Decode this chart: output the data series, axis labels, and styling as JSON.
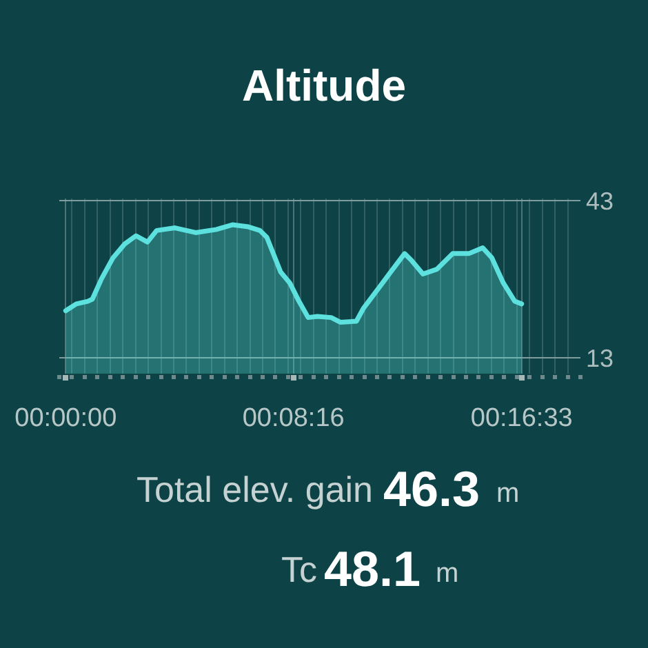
{
  "chart_data": {
    "type": "area",
    "title": "Altitude",
    "x": [
      0,
      23,
      48,
      58,
      78,
      103,
      128,
      153,
      178,
      198,
      238,
      283,
      328,
      363,
      398,
      423,
      438,
      468,
      488,
      508,
      528,
      548,
      578,
      598,
      633,
      648,
      678,
      708,
      738,
      753,
      778,
      808,
      843,
      878,
      908,
      928,
      953,
      978,
      993
    ],
    "series": [
      {
        "color": "#5ce1de",
        "values": [
          22.0,
          23.3,
          23.8,
          24.2,
          28.1,
          32.1,
          34.7,
          36.3,
          35.1,
          37.3,
          37.8,
          36.9,
          37.5,
          38.4,
          38.0,
          37.3,
          36.0,
          29.4,
          27.3,
          23.8,
          20.7,
          20.9,
          20.7,
          19.8,
          20.0,
          22.4,
          25.9,
          29.4,
          32.9,
          31.6,
          29.0,
          29.9,
          32.9,
          32.9,
          34.0,
          32.1,
          27.3,
          23.8,
          23.3
        ]
      }
    ],
    "xlim": [
      -14,
      1121
    ],
    "xticks": [
      {
        "value": 0,
        "label": "00:00:00"
      },
      {
        "value": 496,
        "label": "00:08:16"
      },
      {
        "value": 993,
        "label": "00:16:33"
      }
    ],
    "ylim": [
      10,
      43.4
    ],
    "yticks": [
      13,
      43
    ],
    "grid": true,
    "annotations": [
      "Total elev. gain",
      "46.3",
      "m",
      "Tc",
      "48.1",
      "m"
    ]
  }
}
